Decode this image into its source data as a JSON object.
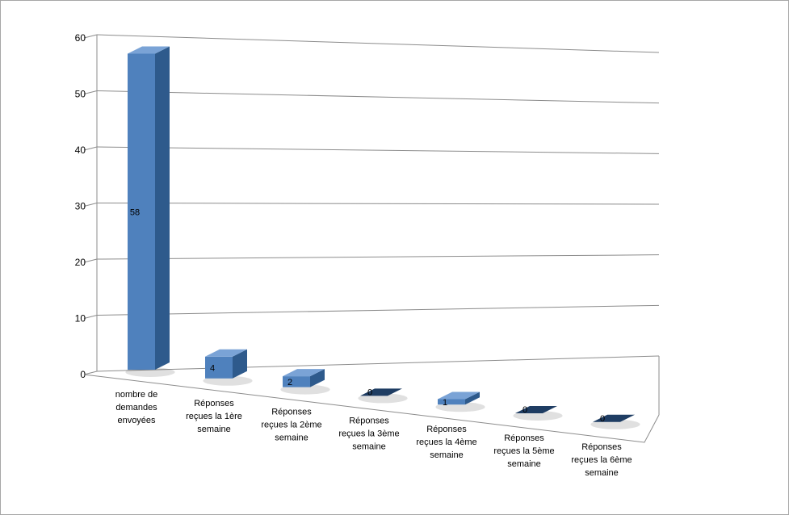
{
  "chart_data": {
    "type": "bar",
    "title": "",
    "xlabel": "",
    "ylabel": "",
    "ylim": [
      0,
      60
    ],
    "yticks": [
      "0",
      "10",
      "20",
      "30",
      "40",
      "50",
      "60"
    ],
    "grid": true,
    "legend": "none",
    "style": "3d-column",
    "categories": [
      [
        "nombre de",
        "demandes",
        "envoyées"
      ],
      [
        "Réponses",
        "reçues la 1ère",
        "semaine"
      ],
      [
        "Réponses",
        "reçues la 2ème",
        "semaine"
      ],
      [
        "Réponses",
        "reçues la 3ème",
        "semaine"
      ],
      [
        "Réponses",
        "reçues la 4ème",
        "semaine"
      ],
      [
        "Réponses",
        "reçues la 5ème",
        "semaine"
      ],
      [
        "Réponses",
        "reçues la 6ème",
        "semaine"
      ]
    ],
    "values": [
      58,
      4,
      2,
      0,
      1,
      0,
      0
    ],
    "data_labels": [
      "58",
      "4",
      "2",
      "0",
      "1",
      "0",
      "0"
    ],
    "colors": {
      "bar_front": "#4f81bd",
      "bar_side": "#2e5a8c",
      "bar_top": "#7aa3d6",
      "gridline": "#8c8c8c",
      "axis": "#8c8c8c"
    }
  }
}
